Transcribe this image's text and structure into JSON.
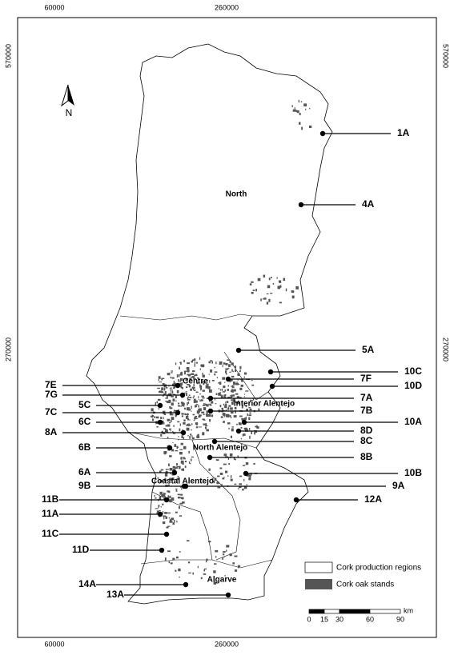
{
  "grid_labels": {
    "x": [
      "60000",
      "260000"
    ],
    "y": [
      "570000",
      "270000"
    ]
  },
  "north_arrow": "N",
  "regions": [
    "North",
    "Centre",
    "Interior Alentejo",
    "North Alentejo",
    "Coastal Alentejo",
    "Algarve"
  ],
  "sites": [
    "1A",
    "4A",
    "5A",
    "10C",
    "7F",
    "10D",
    "7E",
    "7G",
    "7A",
    "5C",
    "7C",
    "7B",
    "6C",
    "10A",
    "8A",
    "8D",
    "8C",
    "6B",
    "8B",
    "6A",
    "10B",
    "9B",
    "9A",
    "11B",
    "12A",
    "11A",
    "11C",
    "11D",
    "14A",
    "13A"
  ],
  "legend": [
    "Cork production regions",
    "Cork oak stands"
  ],
  "scale": {
    "ticks": [
      0,
      15,
      30,
      60,
      90
    ],
    "unit": "km"
  }
}
